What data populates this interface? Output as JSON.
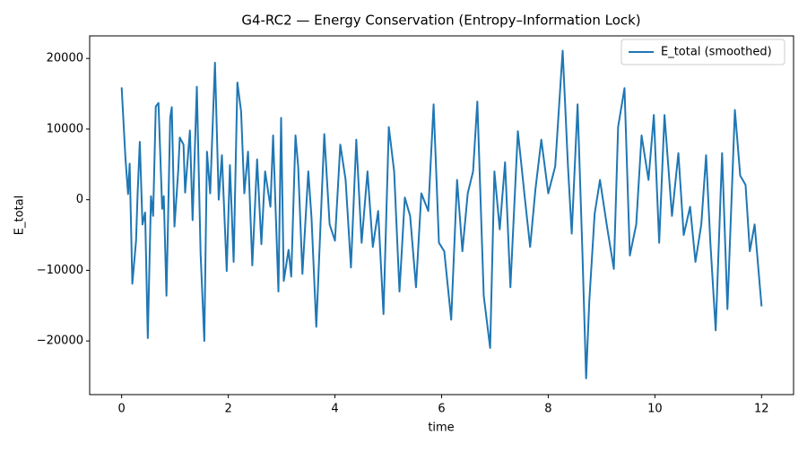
{
  "chart_data": {
    "type": "line",
    "title": "G4-RC2 — Energy Conservation (Entropy–Information Lock)",
    "x_label": "time",
    "y_label": "E_total",
    "x": [
      0,
      0.07,
      0.12,
      0.15,
      0.2,
      0.27,
      0.3,
      0.34,
      0.39,
      0.44,
      0.49,
      0.55,
      0.59,
      0.64,
      0.69,
      0.76,
      0.79,
      0.84,
      0.91,
      0.94,
      0.99,
      1.06,
      1.09,
      1.16,
      1.19,
      1.28,
      1.33,
      1.41,
      1.48,
      1.55,
      1.6,
      1.66,
      1.75,
      1.82,
      1.88,
      1.97,
      2.03,
      2.1,
      2.17,
      2.24,
      2.3,
      2.37,
      2.45,
      2.54,
      2.62,
      2.69,
      2.79,
      2.84,
      2.94,
      2.99,
      3.04,
      3.13,
      3.18,
      3.26,
      3.31,
      3.39,
      3.5,
      3.56,
      3.65,
      3.8,
      3.9,
      4.0,
      4.1,
      4.2,
      4.3,
      4.4,
      4.5,
      4.61,
      4.71,
      4.81,
      4.91,
      5.01,
      5.11,
      5.21,
      5.31,
      5.41,
      5.52,
      5.62,
      5.75,
      5.85,
      5.95,
      6.05,
      6.18,
      6.29,
      6.39,
      6.49,
      6.59,
      6.67,
      6.79,
      6.91,
      6.99,
      7.09,
      7.19,
      7.29,
      7.43,
      7.56,
      7.66,
      7.76,
      7.87,
      8.0,
      8.13,
      8.27,
      8.37,
      8.44,
      8.55,
      8.64,
      8.71,
      8.77,
      8.87,
      8.97,
      9.11,
      9.23,
      9.31,
      9.43,
      9.53,
      9.65,
      9.75,
      9.88,
      9.98,
      10.08,
      10.18,
      10.32,
      10.44,
      10.54,
      10.66,
      10.76,
      10.87,
      10.96,
      11.04,
      11.14,
      11.26,
      11.36,
      11.5,
      11.6,
      11.7,
      11.78,
      11.87,
      12.0
    ],
    "series": [
      {
        "name": "E_total (smoothed)",
        "color": "#1f77b4",
        "values": [
          15900,
          6000,
          800,
          5100,
          -11900,
          -5800,
          1000,
          8200,
          -3500,
          -1800,
          -19600,
          500,
          -2300,
          13200,
          13700,
          -1300,
          500,
          -13600,
          11600,
          13100,
          -3800,
          4000,
          8800,
          7800,
          1000,
          9800,
          -2900,
          16000,
          -7600,
          -20000,
          6800,
          900,
          19400,
          0,
          6300,
          -10100,
          4900,
          -8800,
          16600,
          12500,
          900,
          6800,
          -9300,
          5700,
          -6300,
          4000,
          -1000,
          9100,
          -13000,
          11600,
          -11500,
          -7100,
          -10900,
          9100,
          4700,
          -10500,
          4000,
          -2500,
          -18000,
          9300,
          -3500,
          -5800,
          7800,
          2800,
          -9600,
          8500,
          -6100,
          4000,
          -6700,
          -1600,
          -16200,
          10300,
          4000,
          -13000,
          300,
          -2300,
          -12400,
          900,
          -1600,
          13500,
          -6100,
          -7300,
          -17000,
          2800,
          -7300,
          900,
          4000,
          13900,
          -13600,
          -21000,
          4000,
          -4200,
          5300,
          -12400,
          9700,
          300,
          -6700,
          1500,
          8500,
          900,
          4700,
          21100,
          4700,
          -4800,
          13500,
          -7300,
          -25300,
          -14300,
          -2000,
          2800,
          -4200,
          -9800,
          10300,
          15800,
          -7900,
          -3500,
          9100,
          2800,
          12000,
          -6100,
          12000,
          -2300,
          6600,
          -5000,
          -1000,
          -8800,
          -3500,
          6300,
          -6100,
          -18500,
          6600,
          -15500,
          12700,
          3400,
          2100,
          -7300,
          -3500,
          -15100
        ]
      }
    ],
    "xlim": [
      -0.6,
      12.6
    ],
    "ylim": [
      -27600,
      23200
    ],
    "xticks": [
      0,
      2,
      4,
      6,
      8,
      10,
      12
    ],
    "yticks": [
      {
        "value": -20000,
        "label": "−20000"
      },
      {
        "value": -10000,
        "label": "−10000"
      },
      0,
      10000,
      20000
    ],
    "legend": "upper right",
    "grid": false
  }
}
